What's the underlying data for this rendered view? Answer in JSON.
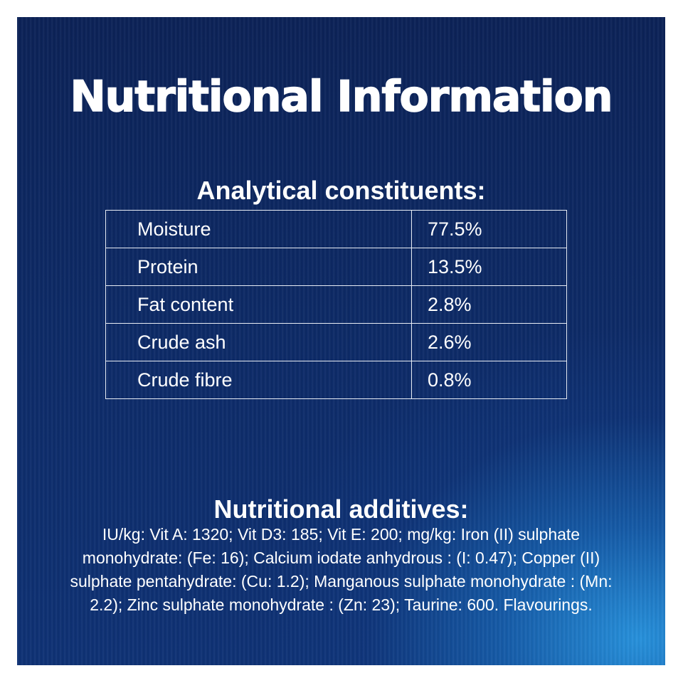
{
  "title": "Nutritional Information",
  "analytical": {
    "heading": "Analytical constituents:",
    "rows": [
      {
        "name": "Moisture",
        "value": "77.5%"
      },
      {
        "name": "Protein",
        "value": "13.5%"
      },
      {
        "name": "Fat content",
        "value": "2.8%"
      },
      {
        "name": "Crude ash",
        "value": "2.6%"
      },
      {
        "name": "Crude fibre",
        "value": "0.8%"
      }
    ]
  },
  "additives": {
    "heading": "Nutritional additives:",
    "text": "IU/kg: Vit A: 1320; Vit D3: 185; Vit E: 200; mg/kg: Iron (II) sulphate monohydrate: (Fe: 16); Calcium iodate anhydrous : (I: 0.47); Copper (II) sulphate pentahydrate: (Cu: 1.2); Manganous sulphate monohydrate : (Mn: 2.2); Zinc sulphate monohydrate : (Zn: 23); Taurine: 600. Flavourings."
  },
  "colors": {
    "background_dark": "#0c2257",
    "background_light": "#2896e1",
    "text": "#ffffff",
    "table_border": "#e8edf5"
  }
}
